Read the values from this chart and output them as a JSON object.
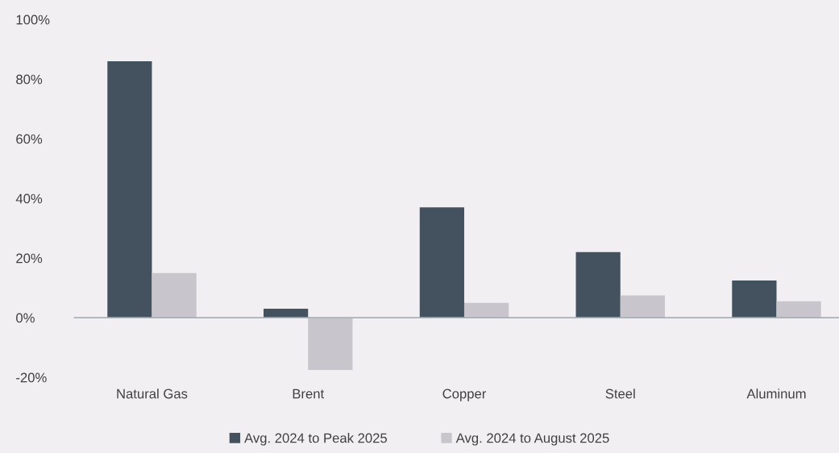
{
  "chart_data": {
    "type": "bar",
    "categories": [
      "Natural Gas",
      "Brent",
      "Copper",
      "Steel",
      "Aluminum"
    ],
    "series": [
      {
        "name": "Avg. 2024 to Peak 2025",
        "color": "#44525f",
        "values": [
          86,
          3,
          37,
          22,
          12.5
        ]
      },
      {
        "name": "Avg. 2024 to August 2025",
        "color": "#c8c5cc",
        "values": [
          15,
          -17.5,
          5,
          7.5,
          5.5
        ]
      }
    ],
    "ylim": [
      -20,
      100
    ],
    "yticks": [
      {
        "value": -20,
        "label": "-20%"
      },
      {
        "value": 0,
        "label": "0%"
      },
      {
        "value": 20,
        "label": "20%"
      },
      {
        "value": 40,
        "label": "40%"
      },
      {
        "value": 60,
        "label": "60%"
      },
      {
        "value": 80,
        "label": "80%"
      },
      {
        "value": 100,
        "label": "100%"
      }
    ],
    "grid": false,
    "ref_lines": [
      {
        "axis": "y",
        "value": 0,
        "color": "#aab0b8"
      }
    ],
    "legend": "bottom"
  }
}
